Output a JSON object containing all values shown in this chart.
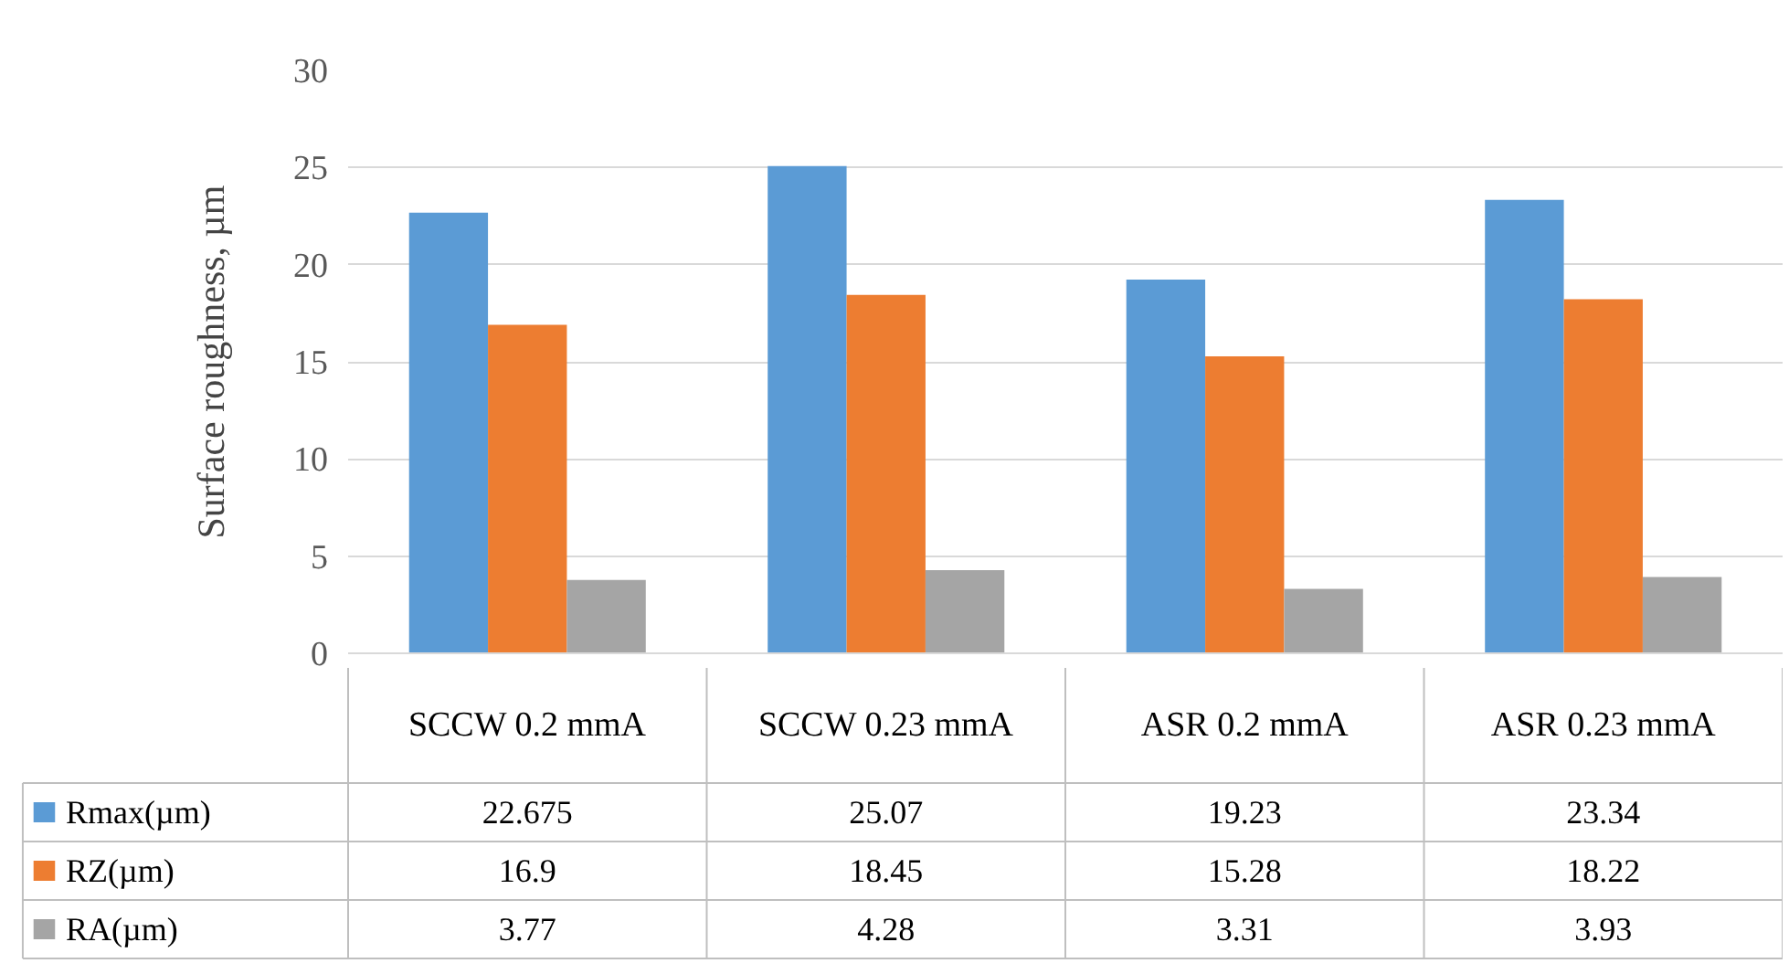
{
  "chart_data": {
    "type": "bar",
    "ylabel": "Surface roughness, µm",
    "categories": [
      "SCCW 0.2 mmA",
      "SCCW 0.23 mmA",
      "ASR 0.2 mmA",
      "ASR 0.23 mmA"
    ],
    "series": [
      {
        "name": "Rmax(µm)",
        "color": "#5b9bd5",
        "values": [
          22.675,
          25.07,
          19.23,
          23.34
        ]
      },
      {
        "name": "RZ(µm)",
        "color": "#ed7d31",
        "values": [
          16.9,
          18.45,
          15.28,
          18.22
        ]
      },
      {
        "name": "RA(µm)",
        "color": "#a5a5a5",
        "values": [
          3.77,
          4.28,
          3.31,
          3.93
        ]
      }
    ],
    "ylim": [
      0,
      30
    ],
    "yticks": [
      0,
      5,
      10,
      15,
      20,
      25,
      30
    ],
    "grid": "y",
    "legend": "bottom",
    "data_labels": true
  }
}
